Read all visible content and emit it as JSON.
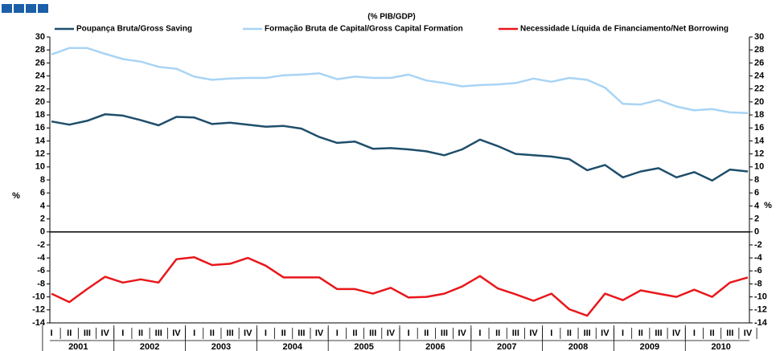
{
  "chart_data": {
    "type": "line",
    "subtitle": "(% PIB/GDP)",
    "ylabel": "%",
    "y2label": "%",
    "categories": [
      "I",
      "II",
      "III",
      "IV",
      "I",
      "II",
      "III",
      "IV",
      "I",
      "II",
      "III",
      "IV",
      "I",
      "II",
      "III",
      "IV",
      "I",
      "II",
      "III",
      "IV",
      "I",
      "II",
      "III",
      "IV",
      "I",
      "II",
      "III",
      "IV",
      "I",
      "II",
      "III",
      "IV",
      "I",
      "II",
      "III",
      "IV",
      "I",
      "II",
      "III",
      "IV"
    ],
    "years": [
      "2001",
      "2002",
      "2003",
      "2004",
      "2005",
      "2006",
      "2007",
      "2008",
      "2009",
      "2010"
    ],
    "ylim": [
      -14,
      30
    ],
    "yticks": [
      -14,
      -12,
      -10,
      -8,
      -6,
      -4,
      -2,
      0,
      2,
      4,
      6,
      8,
      10,
      12,
      14,
      16,
      18,
      20,
      22,
      24,
      26,
      28,
      30
    ],
    "y2lim": [
      -14,
      30
    ],
    "y2ticks": [
      -14,
      -12,
      -10,
      -8,
      -6,
      -4,
      -2,
      0,
      2,
      4,
      6,
      8,
      10,
      12,
      14,
      16,
      18,
      20,
      22,
      24,
      26,
      28,
      30
    ],
    "series": [
      {
        "name": "Poupança Bruta/Gross Saving",
        "color": "#1f4e6b",
        "values": [
          17.0,
          16.5,
          17.1,
          18.1,
          17.9,
          17.2,
          16.4,
          17.7,
          17.6,
          16.6,
          16.8,
          16.5,
          16.2,
          16.3,
          15.9,
          14.6,
          13.7,
          13.9,
          12.8,
          12.9,
          12.7,
          12.4,
          11.8,
          12.7,
          14.2,
          13.2,
          12.0,
          11.8,
          11.6,
          11.2,
          9.5,
          10.3,
          8.4,
          9.3,
          9.8,
          8.4,
          9.2,
          7.9,
          9.6,
          9.3
        ]
      },
      {
        "name": "Formação Bruta de Capital/Gross Capital Formation",
        "color": "#a8d4f5",
        "values": [
          27.3,
          28.3,
          28.3,
          27.4,
          26.6,
          26.2,
          25.4,
          25.1,
          23.9,
          23.4,
          23.6,
          23.7,
          23.7,
          24.1,
          24.2,
          24.4,
          23.5,
          23.9,
          23.7,
          23.7,
          24.2,
          23.3,
          22.9,
          22.4,
          22.6,
          22.7,
          22.9,
          23.6,
          23.1,
          23.7,
          23.4,
          22.2,
          19.7,
          19.6,
          20.3,
          19.3,
          18.7,
          18.9,
          18.4,
          18.3
        ]
      },
      {
        "name": "Necessidade Líquida de Financiamento/Net Borrowing",
        "color": "#e8171b",
        "values": [
          -9.5,
          -10.8,
          -8.8,
          -6.9,
          -7.8,
          -7.3,
          -7.8,
          -4.2,
          -3.9,
          -5.1,
          -4.9,
          -4.0,
          -5.2,
          -7.0,
          -7.0,
          -7.0,
          -8.8,
          -8.8,
          -9.5,
          -8.6,
          -10.1,
          -10.0,
          -9.5,
          -8.4,
          -6.8,
          -8.7,
          -9.6,
          -10.6,
          -9.5,
          -11.9,
          -12.9,
          -9.5,
          -10.5,
          -9.0,
          -9.5,
          -10.0,
          -8.9,
          -10.0,
          -7.8,
          -7.0
        ]
      }
    ]
  }
}
